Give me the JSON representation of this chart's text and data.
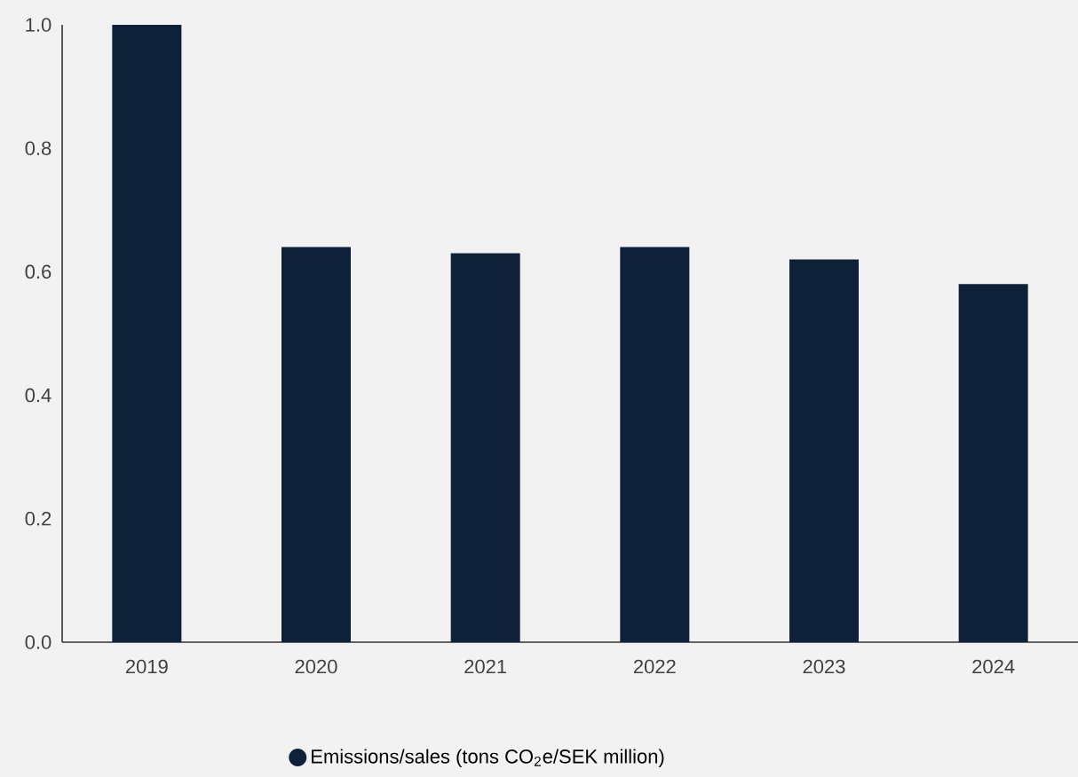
{
  "chart_data": {
    "type": "bar",
    "categories": [
      "2019",
      "2020",
      "2021",
      "2022",
      "2023",
      "2024"
    ],
    "series": [
      {
        "name": "Emissions/sales (tons CO$_{2}$e/SEK million)",
        "color": "#0f2039",
        "values": [
          1.0,
          0.64,
          0.63,
          0.64,
          0.62,
          0.58
        ]
      }
    ],
    "ylim": [
      0,
      1.0
    ],
    "yticks": [
      {
        "value": 0,
        "label": "0.0"
      },
      {
        "value": 0.2,
        "label": "0.2"
      },
      {
        "value": 0.4,
        "label": "0.4"
      },
      {
        "value": 0.6,
        "label": "0.6"
      },
      {
        "value": 0.8,
        "label": "0.8"
      },
      {
        "value": 1.0,
        "label": "1.0"
      }
    ],
    "grid": false,
    "legend": "bottom"
  }
}
